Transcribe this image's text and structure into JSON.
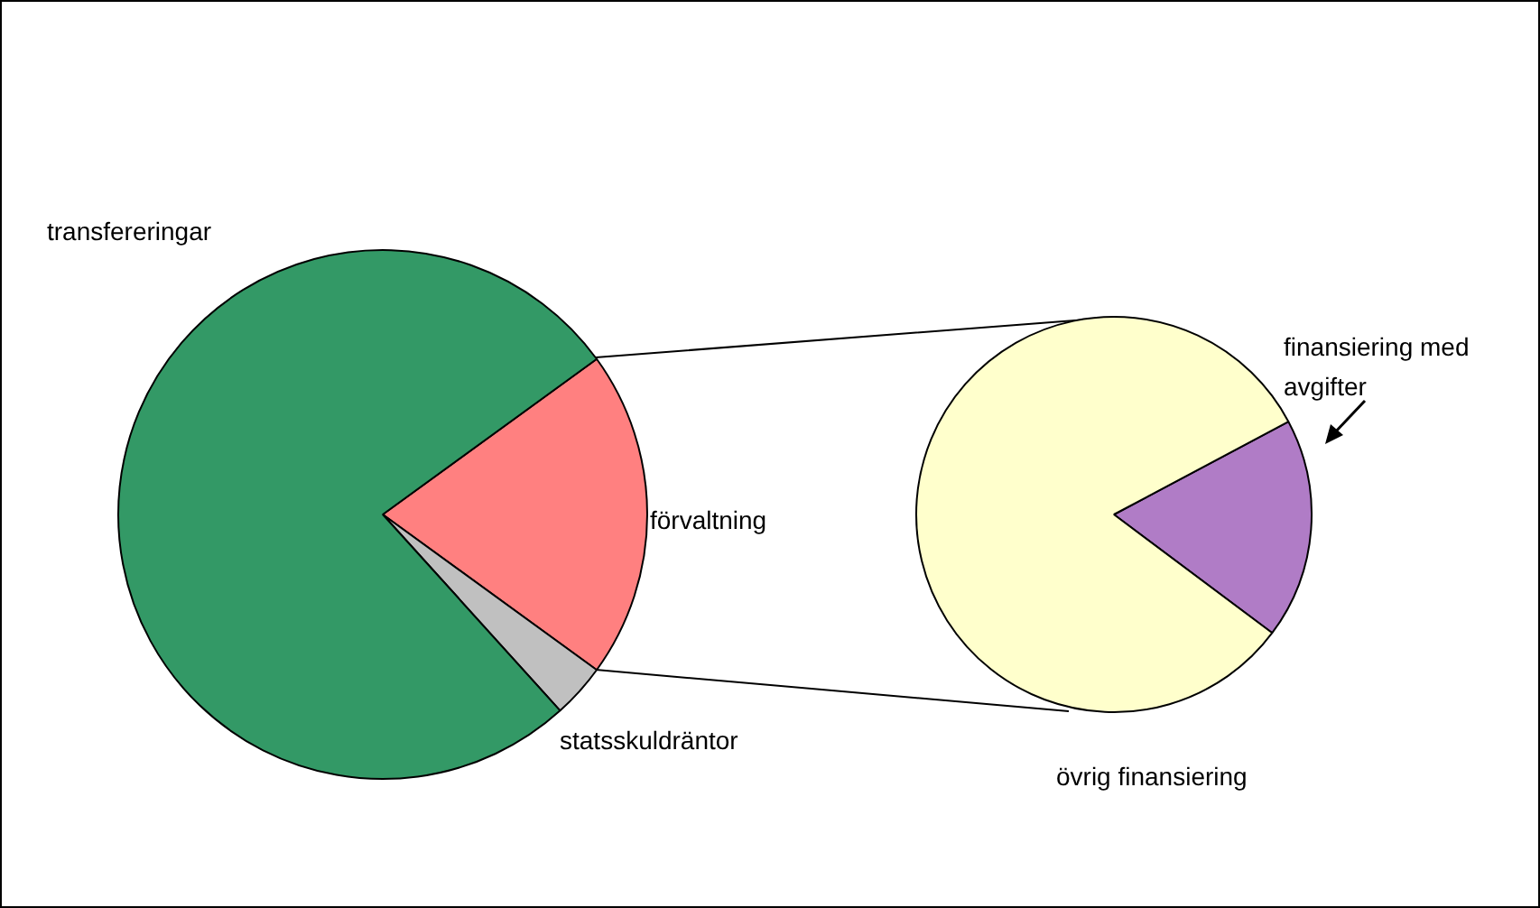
{
  "chart_data": [
    {
      "type": "pie",
      "categories": [
        "förvaltning",
        "statsskuldräntor",
        "transfereringar"
      ],
      "values": [
        20,
        3.3,
        76.7
      ],
      "colors": [
        "#ff8080",
        "#c0c0c0",
        "#339966"
      ]
    },
    {
      "type": "pie",
      "categories": [
        "finansiering med avgifter",
        "övrig finansiering"
      ],
      "values": [
        18,
        82
      ],
      "colors": [
        "#b07cc6",
        "#ffffcc"
      ]
    }
  ]
}
